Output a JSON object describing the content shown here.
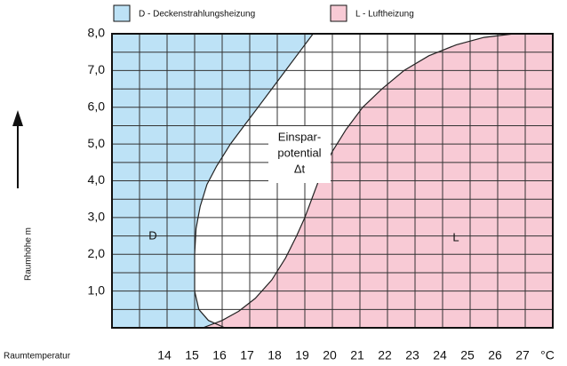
{
  "chart_data": {
    "type": "area",
    "xlabel": "Raumtemperatur",
    "ylabel": "Raumhöhe m",
    "x_unit": "°C",
    "xlim": [
      12,
      28
    ],
    "ylim": [
      0,
      8
    ],
    "xticks": [
      14,
      15,
      16,
      17,
      18,
      19,
      20,
      21,
      22,
      23,
      24,
      25,
      26,
      27
    ],
    "yticks": [
      {
        "value": 1,
        "label": "1,0"
      },
      {
        "value": 2,
        "label": "2,0"
      },
      {
        "value": 3,
        "label": "3,0"
      },
      {
        "value": 4,
        "label": "4,0"
      },
      {
        "value": 5,
        "label": "5,0"
      },
      {
        "value": 6,
        "label": "6,0"
      },
      {
        "value": 7,
        "label": "7,0"
      },
      {
        "value": 8,
        "label": "8,0"
      }
    ],
    "grid": true,
    "series": [
      {
        "name": "D - Deckenstrahlungsheizung",
        "color": "#bde2f6",
        "side": "left",
        "x": [
          16.1,
          15.5,
          15.15,
          15.0,
          15.0,
          15.05,
          15.2,
          15.45,
          15.8,
          16.3,
          16.8,
          17.3,
          17.8,
          18.3,
          18.8,
          19.3
        ],
        "values": [
          0,
          0.2,
          0.5,
          1.0,
          2.0,
          2.7,
          3.3,
          3.9,
          4.4,
          5.0,
          5.5,
          6.0,
          6.5,
          7.0,
          7.5,
          8.0
        ]
      },
      {
        "name": "L - Luftheizung",
        "color": "#f8cad5",
        "side": "right",
        "x": [
          15.3,
          16.0,
          16.6,
          17.2,
          17.8,
          18.3,
          18.7,
          19.0,
          19.3,
          19.6,
          20.0,
          20.5,
          21.1,
          21.8,
          22.6,
          23.5,
          24.5,
          25.5,
          26.6
        ],
        "values": [
          0,
          0.2,
          0.45,
          0.8,
          1.3,
          1.9,
          2.5,
          3.0,
          3.6,
          4.2,
          4.8,
          5.4,
          6.0,
          6.5,
          7.0,
          7.4,
          7.7,
          7.9,
          8.0
        ]
      }
    ],
    "annotations": [
      "D",
      "Einspar-",
      "potential",
      "Δt",
      "L"
    ]
  }
}
